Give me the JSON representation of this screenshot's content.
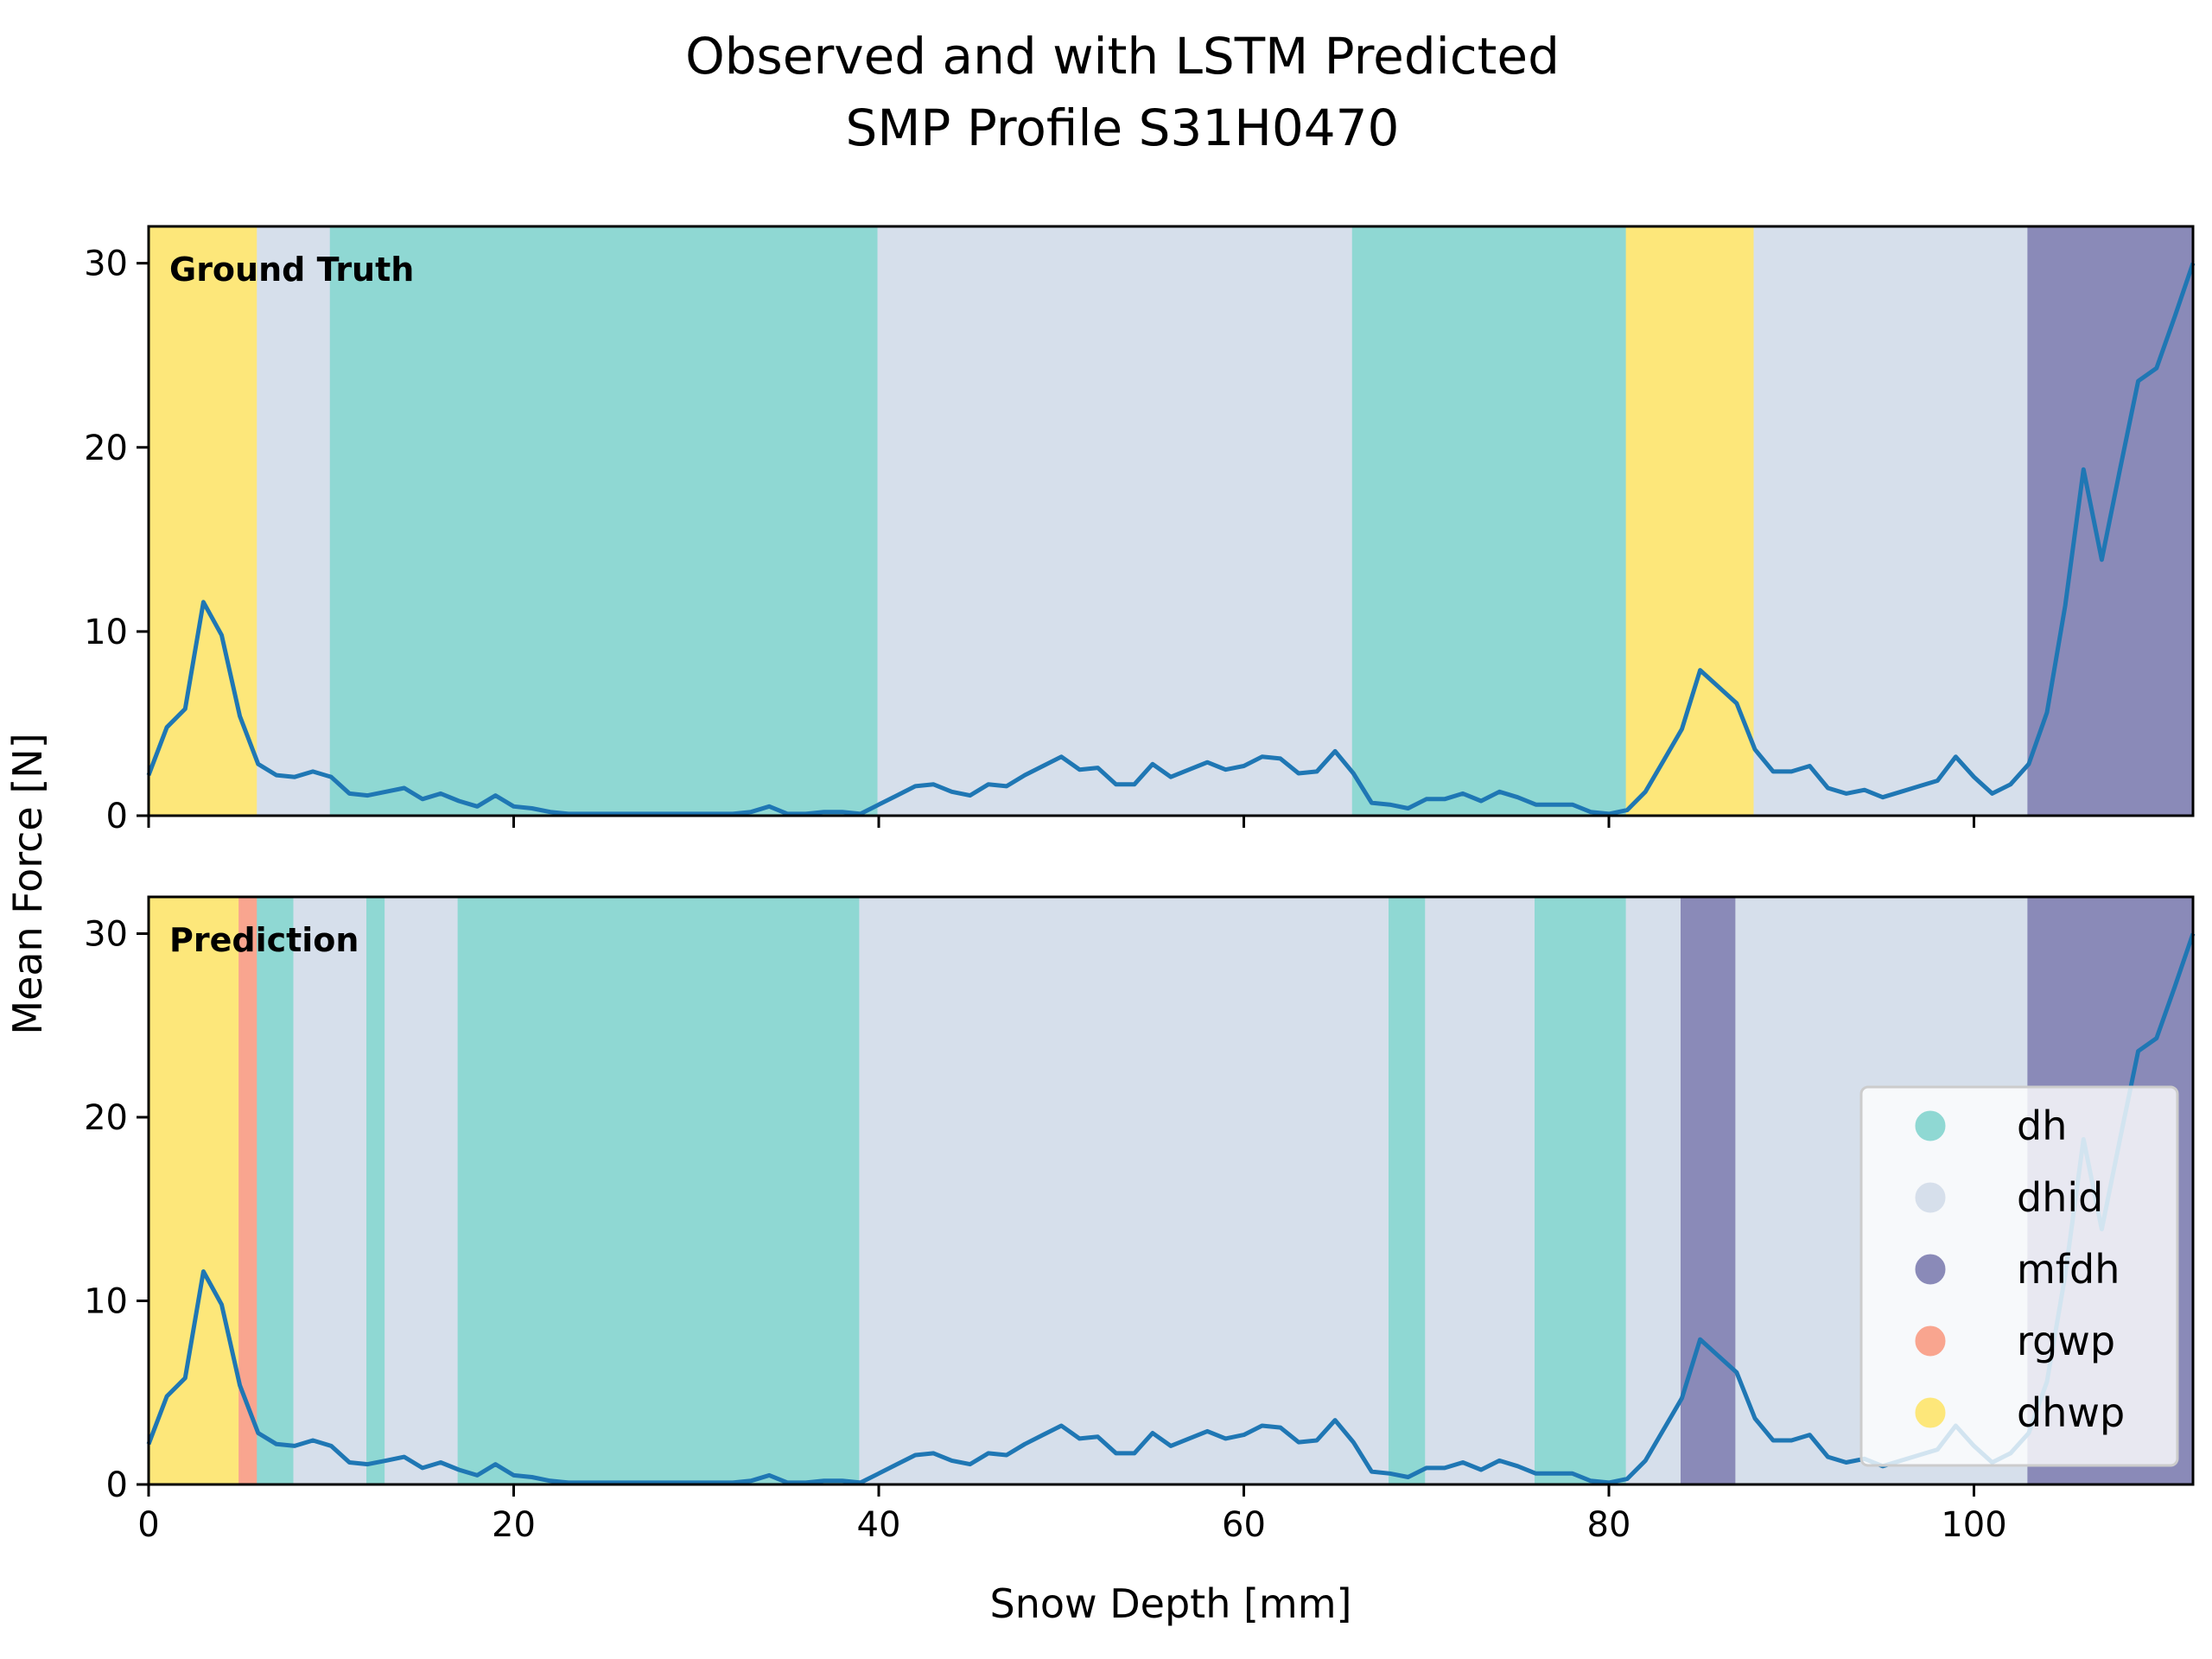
{
  "chart_data": {
    "type": "line",
    "title": "Observed and with LSTM Predicted\nSMP Profile S31H0470",
    "xlabel": "Snow Depth [mm]",
    "ylabel": "Mean Force [N]",
    "xlim": [
      0,
      112
    ],
    "ylim": [
      0,
      32
    ],
    "xticks": [
      0,
      20,
      40,
      60,
      80,
      100
    ],
    "yticks": [
      0,
      10,
      20,
      30
    ],
    "grid": false,
    "legend_position": "lower-right",
    "legend": [
      {
        "label": "dh",
        "color": "#8fd8d3"
      },
      {
        "label": "dhid",
        "color": "#d6dfeb"
      },
      {
        "label": "mfdh",
        "color": "#8a8ab8"
      },
      {
        "label": "rgwp",
        "color": "#f9a58f"
      },
      {
        "label": "dhwp",
        "color": "#fde77a"
      }
    ],
    "series": [
      {
        "x": [
          0,
          1,
          2,
          3,
          4,
          5,
          6,
          7,
          8,
          9,
          10,
          11,
          12,
          13,
          14,
          15,
          16,
          17,
          18,
          19,
          20,
          21,
          22,
          23,
          24,
          25,
          26,
          27,
          28,
          29,
          30,
          31,
          32,
          33,
          34,
          35,
          36,
          37,
          38,
          39,
          40,
          41,
          42,
          43,
          44,
          45,
          46,
          47,
          48,
          49,
          50,
          51,
          52,
          53,
          54,
          55,
          56,
          57,
          58,
          59,
          60,
          61,
          62,
          63,
          64,
          65,
          66,
          67,
          68,
          69,
          70,
          71,
          72,
          73,
          74,
          75,
          76,
          77,
          78,
          79,
          80,
          81,
          82,
          83,
          84,
          85,
          86,
          87,
          88,
          89,
          90,
          91,
          92,
          93,
          94,
          95,
          96,
          97,
          98,
          99,
          100,
          101,
          102,
          103,
          104,
          105,
          106,
          107,
          108,
          109,
          110,
          111,
          112
        ],
        "y": [
          2.2,
          4.8,
          5.8,
          11.6,
          9.8,
          5.4,
          2.8,
          2.2,
          2.1,
          2.4,
          2.1,
          1.2,
          1.1,
          1.3,
          1.5,
          0.9,
          1.2,
          0.8,
          0.5,
          1.1,
          0.5,
          0.4,
          0.2,
          0.1,
          0.1,
          0.1,
          0.1,
          0.1,
          0.1,
          0.1,
          0.1,
          0.1,
          0.1,
          0.2,
          0.5,
          0.1,
          0.1,
          0.2,
          0.2,
          0.1,
          0.6,
          1.1,
          1.6,
          1.7,
          1.3,
          1.1,
          1.7,
          1.6,
          2.2,
          2.7,
          3.2,
          2.5,
          2.6,
          1.7,
          1.7,
          2.8,
          2.1,
          2.5,
          2.9,
          2.5,
          2.7,
          3.2,
          3.1,
          2.3,
          2.4,
          3.5,
          2.3,
          0.7,
          0.6,
          0.4,
          0.9,
          0.9,
          1.2,
          0.8,
          1.3,
          1.0,
          0.6,
          0.6,
          0.6,
          0.2,
          0.1,
          0.3,
          1.3,
          3.0,
          4.7,
          7.9,
          7.0,
          6.1,
          3.6,
          2.4,
          2.4,
          2.7,
          1.5,
          1.2,
          1.4,
          1.0,
          1.3,
          1.6,
          1.9,
          3.2,
          2.1,
          1.2,
          1.7,
          2.8,
          5.6,
          11.4,
          18.8,
          13.9,
          18.8,
          23.6,
          24.3,
          27.1,
          30.0
        ]
      }
    ],
    "panels": [
      {
        "label": "Ground Truth",
        "segments": [
          {
            "from": 0,
            "to": 6,
            "class": "dhwp"
          },
          {
            "from": 6,
            "to": 10,
            "class": "dhid"
          },
          {
            "from": 10,
            "to": 40,
            "class": "dh"
          },
          {
            "from": 40,
            "to": 66,
            "class": "dhid"
          },
          {
            "from": 66,
            "to": 81,
            "class": "dh"
          },
          {
            "from": 81,
            "to": 88,
            "class": "dhwp"
          },
          {
            "from": 88,
            "to": 103,
            "class": "dhid"
          },
          {
            "from": 103,
            "to": 112,
            "class": "mfdh"
          }
        ]
      },
      {
        "label": "Prediction",
        "segments": [
          {
            "from": 0,
            "to": 5,
            "class": "dhwp"
          },
          {
            "from": 5,
            "to": 6,
            "class": "rgwp"
          },
          {
            "from": 6,
            "to": 8,
            "class": "dh"
          },
          {
            "from": 8,
            "to": 12,
            "class": "dhid"
          },
          {
            "from": 12,
            "to": 13,
            "class": "dh"
          },
          {
            "from": 13,
            "to": 17,
            "class": "dhid"
          },
          {
            "from": 17,
            "to": 39,
            "class": "dh"
          },
          {
            "from": 39,
            "to": 68,
            "class": "dhid"
          },
          {
            "from": 68,
            "to": 70,
            "class": "dh"
          },
          {
            "from": 70,
            "to": 76,
            "class": "dhid"
          },
          {
            "from": 76,
            "to": 81,
            "class": "dh"
          },
          {
            "from": 81,
            "to": 84,
            "class": "dhid"
          },
          {
            "from": 84,
            "to": 87,
            "class": "mfdh"
          },
          {
            "from": 87,
            "to": 103,
            "class": "dhid"
          },
          {
            "from": 103,
            "to": 112,
            "class": "mfdh"
          }
        ]
      }
    ],
    "line_color": "#1f77b4"
  }
}
